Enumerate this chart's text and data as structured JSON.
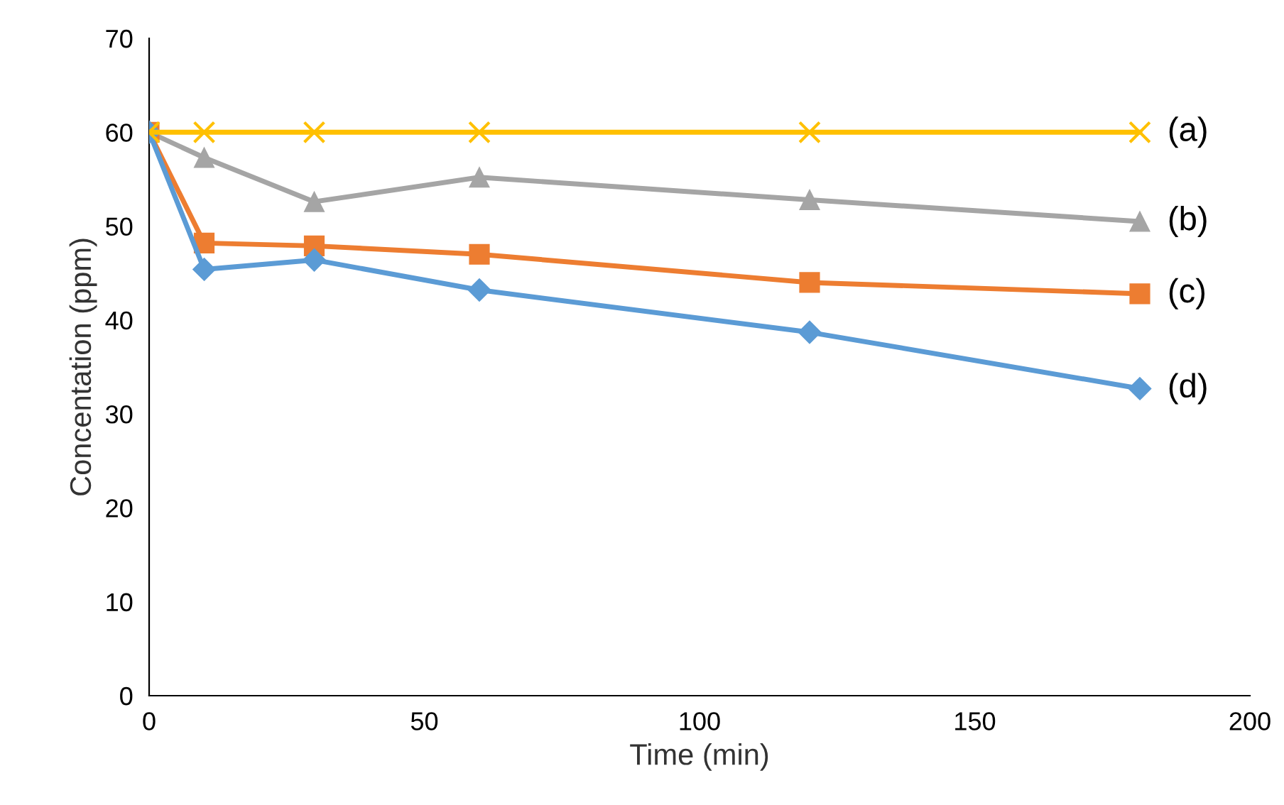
{
  "chart_data": {
    "type": "line",
    "xlabel": "Time (min)",
    "ylabel": "Concentation (ppm)",
    "x": [
      0,
      10,
      30,
      60,
      120,
      180
    ],
    "series": [
      {
        "name": "(a)",
        "color": "#ffc000",
        "marker": "cross",
        "values": [
          60,
          60,
          60,
          60,
          60,
          60
        ]
      },
      {
        "name": "(b)",
        "color": "#a5a5a5",
        "marker": "triangle",
        "values": [
          60,
          57.3,
          52.6,
          55.2,
          52.8,
          50.5
        ]
      },
      {
        "name": "(c)",
        "color": "#ed7d31",
        "marker": "square",
        "values": [
          60,
          48.2,
          47.9,
          47.0,
          44.0,
          42.8
        ]
      },
      {
        "name": "(d)",
        "color": "#5b9bd5",
        "marker": "diamond",
        "values": [
          60,
          45.4,
          46.4,
          43.2,
          38.7,
          32.7
        ]
      }
    ],
    "xlim": [
      0,
      200
    ],
    "xticks": [
      0,
      50,
      100,
      150,
      200
    ],
    "ylim": [
      0,
      70
    ],
    "yticks": [
      0,
      10,
      20,
      30,
      40,
      50,
      60,
      70
    ],
    "grid": false,
    "legend": false
  }
}
